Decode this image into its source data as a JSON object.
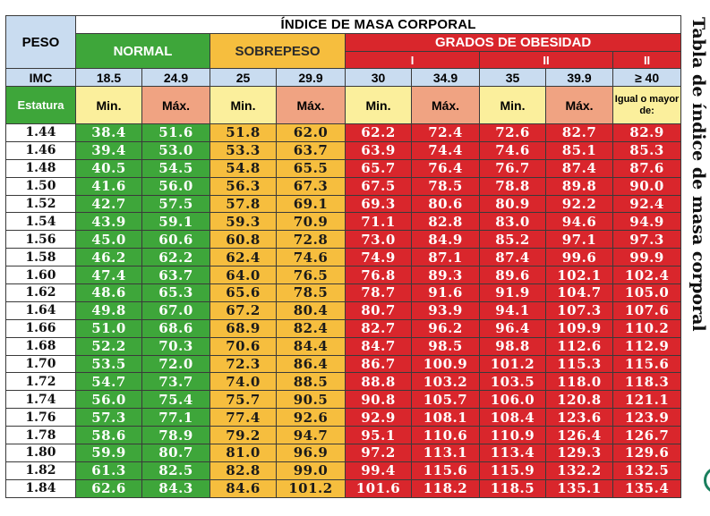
{
  "title": "ÍNDICE DE MASA CORPORAL",
  "side_title": "Tabla de índice de masa corporal",
  "header": {
    "peso": "PESO",
    "normal": "NORMAL",
    "sobrepeso": "SOBREPESO",
    "obesidad": "GRADOS DE OBESIDAD",
    "grades": [
      "I",
      "II",
      "II"
    ],
    "imc_label": "IMC",
    "imc_values": [
      "18.5",
      "24.9",
      "25",
      "29.9",
      "30",
      "34.9",
      "35",
      "39.9",
      "≥ 40"
    ],
    "estatura": "Estatura",
    "min": "Min.",
    "max": "Máx.",
    "igual": "Igual o mayor de:"
  },
  "rows": [
    {
      "h": "1.44",
      "v": [
        "38.4",
        "51.6",
        "51.8",
        "62.0",
        "62.2",
        "72.4",
        "72.6",
        "82.7",
        "82.9"
      ]
    },
    {
      "h": "1.46",
      "v": [
        "39.4",
        "53.0",
        "53.3",
        "63.7",
        "63.9",
        "74.4",
        "74.6",
        "85.1",
        "85.3"
      ]
    },
    {
      "h": "1.48",
      "v": [
        "40.5",
        "54.5",
        "54.8",
        "65.5",
        "65.7",
        "76.4",
        "76.7",
        "87.4",
        "87.6"
      ]
    },
    {
      "h": "1.50",
      "v": [
        "41.6",
        "56.0",
        "56.3",
        "67.3",
        "67.5",
        "78.5",
        "78.8",
        "89.8",
        "90.0"
      ]
    },
    {
      "h": "1.52",
      "v": [
        "42.7",
        "57.5",
        "57.8",
        "69.1",
        "69.3",
        "80.6",
        "80.9",
        "92.2",
        "92.4"
      ]
    },
    {
      "h": "1.54",
      "v": [
        "43.9",
        "59.1",
        "59.3",
        "70.9",
        "71.1",
        "82.8",
        "83.0",
        "94.6",
        "94.9"
      ]
    },
    {
      "h": "1.56",
      "v": [
        "45.0",
        "60.6",
        "60.8",
        "72.8",
        "73.0",
        "84.9",
        "85.2",
        "97.1",
        "97.3"
      ]
    },
    {
      "h": "1.58",
      "v": [
        "46.2",
        "62.2",
        "62.4",
        "74.6",
        "74.9",
        "87.1",
        "87.4",
        "99.6",
        "99.9"
      ]
    },
    {
      "h": "1.60",
      "v": [
        "47.4",
        "63.7",
        "64.0",
        "76.5",
        "76.8",
        "89.3",
        "89.6",
        "102.1",
        "102.4"
      ]
    },
    {
      "h": "1.62",
      "v": [
        "48.6",
        "65.3",
        "65.6",
        "78.5",
        "78.7",
        "91.6",
        "91.9",
        "104.7",
        "105.0"
      ]
    },
    {
      "h": "1.64",
      "v": [
        "49.8",
        "67.0",
        "67.2",
        "80.4",
        "80.7",
        "93.9",
        "94.1",
        "107.3",
        "107.6"
      ]
    },
    {
      "h": "1.66",
      "v": [
        "51.0",
        "68.6",
        "68.9",
        "82.4",
        "82.7",
        "96.2",
        "96.4",
        "109.9",
        "110.2"
      ]
    },
    {
      "h": "1.68",
      "v": [
        "52.2",
        "70.3",
        "70.6",
        "84.4",
        "84.7",
        "98.5",
        "98.8",
        "112.6",
        "112.9"
      ]
    },
    {
      "h": "1.70",
      "v": [
        "53.5",
        "72.0",
        "72.3",
        "86.4",
        "86.7",
        "100.9",
        "101.2",
        "115.3",
        "115.6"
      ]
    },
    {
      "h": "1.72",
      "v": [
        "54.7",
        "73.7",
        "74.0",
        "88.5",
        "88.8",
        "103.2",
        "103.5",
        "118.0",
        "118.3"
      ]
    },
    {
      "h": "1.74",
      "v": [
        "56.0",
        "75.4",
        "75.7",
        "90.5",
        "90.8",
        "105.7",
        "106.0",
        "120.8",
        "121.1"
      ]
    },
    {
      "h": "1.76",
      "v": [
        "57.3",
        "77.1",
        "77.4",
        "92.6",
        "92.9",
        "108.1",
        "108.4",
        "123.6",
        "123.9"
      ]
    },
    {
      "h": "1.78",
      "v": [
        "58.6",
        "78.9",
        "79.2",
        "94.7",
        "95.1",
        "110.6",
        "110.9",
        "126.4",
        "126.7"
      ]
    },
    {
      "h": "1.80",
      "v": [
        "59.9",
        "80.7",
        "81.0",
        "96.9",
        "97.2",
        "113.1",
        "113.4",
        "129.3",
        "129.6"
      ]
    },
    {
      "h": "1.82",
      "v": [
        "61.3",
        "82.5",
        "82.8",
        "99.0",
        "99.4",
        "115.6",
        "115.9",
        "132.2",
        "132.5"
      ]
    },
    {
      "h": "1.84",
      "v": [
        "62.6",
        "84.3",
        "84.6",
        "101.2",
        "101.6",
        "118.2",
        "118.5",
        "135.1",
        "135.4"
      ]
    }
  ]
}
